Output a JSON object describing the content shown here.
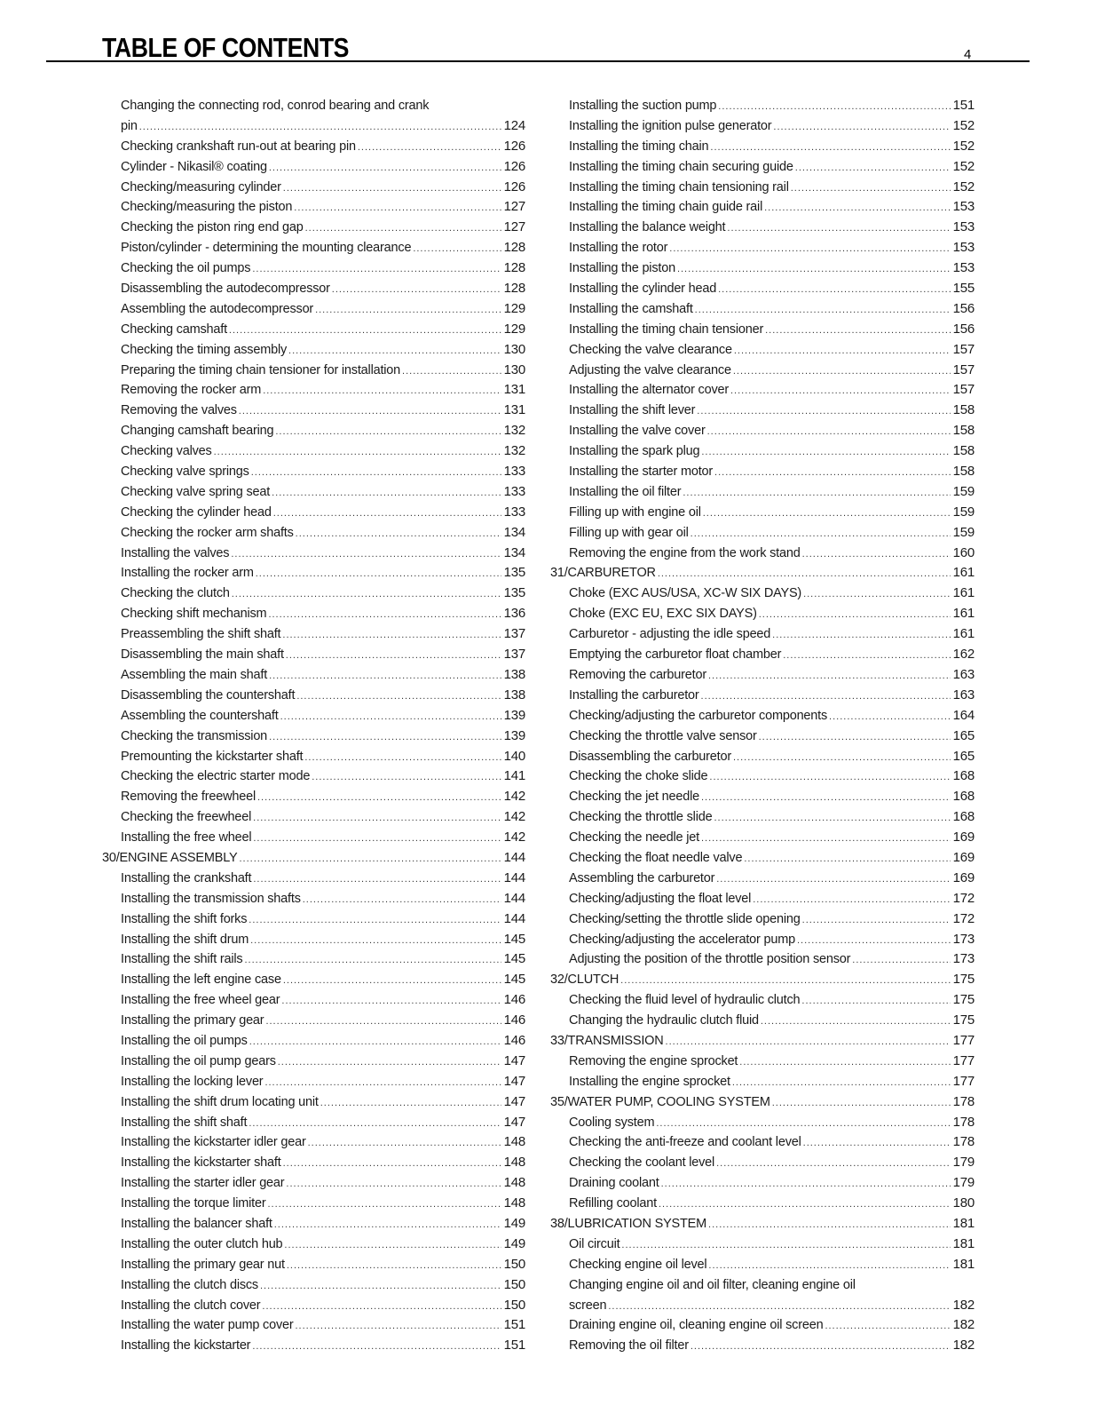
{
  "header": {
    "title": "TABLE OF CONTENTS",
    "page_number": "4"
  },
  "columns": [
    [
      {
        "lines": [
          "Changing the connecting rod, conrod bearing and crank",
          "pin"
        ],
        "page": "124",
        "level": 2
      },
      {
        "lines": [
          "Checking crankshaft run-out at bearing pin"
        ],
        "page": "126",
        "level": 2
      },
      {
        "lines": [
          "Cylinder - Nikasil® coating"
        ],
        "page": "126",
        "level": 2
      },
      {
        "lines": [
          "Checking/measuring cylinder"
        ],
        "page": "126",
        "level": 2
      },
      {
        "lines": [
          "Checking/measuring the piston"
        ],
        "page": "127",
        "level": 2
      },
      {
        "lines": [
          "Checking the piston ring end gap"
        ],
        "page": "127",
        "level": 2
      },
      {
        "lines": [
          "Piston/cylinder - determining the mounting clearance"
        ],
        "page": "128",
        "level": 2
      },
      {
        "lines": [
          "Checking the oil pumps"
        ],
        "page": "128",
        "level": 2
      },
      {
        "lines": [
          "Disassembling the autodecompressor"
        ],
        "page": "128",
        "level": 2
      },
      {
        "lines": [
          "Assembling the autodecompressor"
        ],
        "page": "129",
        "level": 2
      },
      {
        "lines": [
          "Checking camshaft"
        ],
        "page": "129",
        "level": 2
      },
      {
        "lines": [
          "Checking the timing assembly"
        ],
        "page": "130",
        "level": 2
      },
      {
        "lines": [
          "Preparing the timing chain tensioner for installation"
        ],
        "page": "130",
        "level": 2
      },
      {
        "lines": [
          "Removing the rocker arm"
        ],
        "page": "131",
        "level": 2
      },
      {
        "lines": [
          "Removing the valves"
        ],
        "page": "131",
        "level": 2
      },
      {
        "lines": [
          "Changing camshaft bearing"
        ],
        "page": "132",
        "level": 2
      },
      {
        "lines": [
          "Checking valves"
        ],
        "page": "132",
        "level": 2
      },
      {
        "lines": [
          "Checking valve springs"
        ],
        "page": "133",
        "level": 2
      },
      {
        "lines": [
          "Checking valve spring seat"
        ],
        "page": "133",
        "level": 2
      },
      {
        "lines": [
          "Checking the cylinder head"
        ],
        "page": "133",
        "level": 2
      },
      {
        "lines": [
          "Checking the rocker arm shafts"
        ],
        "page": "134",
        "level": 2
      },
      {
        "lines": [
          "Installing the valves"
        ],
        "page": "134",
        "level": 2
      },
      {
        "lines": [
          "Installing the rocker arm"
        ],
        "page": "135",
        "level": 2
      },
      {
        "lines": [
          "Checking the clutch"
        ],
        "page": "135",
        "level": 2
      },
      {
        "lines": [
          "Checking shift mechanism"
        ],
        "page": "136",
        "level": 2
      },
      {
        "lines": [
          "Preassembling the shift shaft"
        ],
        "page": "137",
        "level": 2
      },
      {
        "lines": [
          "Disassembling the main shaft"
        ],
        "page": "137",
        "level": 2
      },
      {
        "lines": [
          "Assembling the main shaft"
        ],
        "page": "138",
        "level": 2
      },
      {
        "lines": [
          "Disassembling the countershaft"
        ],
        "page": "138",
        "level": 2
      },
      {
        "lines": [
          "Assembling the countershaft"
        ],
        "page": "139",
        "level": 2
      },
      {
        "lines": [
          "Checking the transmission"
        ],
        "page": "139",
        "level": 2
      },
      {
        "lines": [
          "Premounting the kickstarter shaft"
        ],
        "page": "140",
        "level": 2
      },
      {
        "lines": [
          "Checking the electric starter mode"
        ],
        "page": "141",
        "level": 2
      },
      {
        "lines": [
          "Removing the freewheel"
        ],
        "page": "142",
        "level": 2
      },
      {
        "lines": [
          "Checking the freewheel"
        ],
        "page": "142",
        "level": 2
      },
      {
        "lines": [
          "Installing the free wheel"
        ],
        "page": "142",
        "level": 2
      },
      {
        "lines": [
          "30/ENGINE ASSEMBLY"
        ],
        "page": "144",
        "level": 1
      },
      {
        "lines": [
          "Installing the crankshaft"
        ],
        "page": "144",
        "level": 2
      },
      {
        "lines": [
          "Installing the transmission shafts"
        ],
        "page": "144",
        "level": 2
      },
      {
        "lines": [
          "Installing the shift forks"
        ],
        "page": "144",
        "level": 2
      },
      {
        "lines": [
          "Installing the shift drum"
        ],
        "page": "145",
        "level": 2
      },
      {
        "lines": [
          "Installing the shift rails"
        ],
        "page": "145",
        "level": 2
      },
      {
        "lines": [
          "Installing the left engine case"
        ],
        "page": "145",
        "level": 2
      },
      {
        "lines": [
          "Installing the free wheel gear"
        ],
        "page": "146",
        "level": 2
      },
      {
        "lines": [
          "Installing the primary gear"
        ],
        "page": "146",
        "level": 2
      },
      {
        "lines": [
          "Installing the oil pumps"
        ],
        "page": "146",
        "level": 2
      },
      {
        "lines": [
          "Installing the oil pump gears"
        ],
        "page": "147",
        "level": 2
      },
      {
        "lines": [
          "Installing the locking lever"
        ],
        "page": "147",
        "level": 2
      },
      {
        "lines": [
          "Installing the shift drum locating unit"
        ],
        "page": "147",
        "level": 2
      },
      {
        "lines": [
          "Installing the shift shaft"
        ],
        "page": "147",
        "level": 2
      },
      {
        "lines": [
          "Installing the kickstarter idler gear"
        ],
        "page": "148",
        "level": 2
      },
      {
        "lines": [
          "Installing the kickstarter shaft"
        ],
        "page": "148",
        "level": 2
      },
      {
        "lines": [
          "Installing the starter idler gear"
        ],
        "page": "148",
        "level": 2
      },
      {
        "lines": [
          "Installing the torque limiter"
        ],
        "page": "148",
        "level": 2
      },
      {
        "lines": [
          "Installing the balancer shaft"
        ],
        "page": "149",
        "level": 2
      },
      {
        "lines": [
          "Installing the outer clutch hub"
        ],
        "page": "149",
        "level": 2
      },
      {
        "lines": [
          "Installing the primary gear nut"
        ],
        "page": "150",
        "level": 2
      },
      {
        "lines": [
          "Installing the clutch discs"
        ],
        "page": "150",
        "level": 2
      },
      {
        "lines": [
          "Installing the clutch cover"
        ],
        "page": "150",
        "level": 2
      },
      {
        "lines": [
          "Installing the water pump cover"
        ],
        "page": "151",
        "level": 2
      },
      {
        "lines": [
          "Installing the kickstarter"
        ],
        "page": "151",
        "level": 2
      }
    ],
    [
      {
        "lines": [
          "Installing the suction pump"
        ],
        "page": "151",
        "level": 2
      },
      {
        "lines": [
          "Installing the ignition pulse generator"
        ],
        "page": "152",
        "level": 2
      },
      {
        "lines": [
          "Installing the timing chain"
        ],
        "page": "152",
        "level": 2
      },
      {
        "lines": [
          "Installing the timing chain securing guide"
        ],
        "page": "152",
        "level": 2
      },
      {
        "lines": [
          "Installing the timing chain tensioning rail"
        ],
        "page": "152",
        "level": 2
      },
      {
        "lines": [
          "Installing the timing chain guide rail"
        ],
        "page": "153",
        "level": 2
      },
      {
        "lines": [
          "Installing the balance weight"
        ],
        "page": "153",
        "level": 2
      },
      {
        "lines": [
          "Installing the rotor"
        ],
        "page": "153",
        "level": 2
      },
      {
        "lines": [
          "Installing the piston"
        ],
        "page": "153",
        "level": 2
      },
      {
        "lines": [
          "Installing the cylinder head"
        ],
        "page": "155",
        "level": 2
      },
      {
        "lines": [
          "Installing the camshaft"
        ],
        "page": "156",
        "level": 2
      },
      {
        "lines": [
          "Installing the timing chain tensioner"
        ],
        "page": "156",
        "level": 2
      },
      {
        "lines": [
          "Checking the valve clearance"
        ],
        "page": "157",
        "level": 2
      },
      {
        "lines": [
          "Adjusting the valve clearance"
        ],
        "page": "157",
        "level": 2
      },
      {
        "lines": [
          "Installing the alternator cover"
        ],
        "page": "157",
        "level": 2
      },
      {
        "lines": [
          "Installing the shift lever"
        ],
        "page": "158",
        "level": 2
      },
      {
        "lines": [
          "Installing the valve cover"
        ],
        "page": "158",
        "level": 2
      },
      {
        "lines": [
          "Installing the spark plug"
        ],
        "page": "158",
        "level": 2
      },
      {
        "lines": [
          "Installing the starter motor"
        ],
        "page": "158",
        "level": 2
      },
      {
        "lines": [
          "Installing the oil filter"
        ],
        "page": "159",
        "level": 2
      },
      {
        "lines": [
          "Filling up with engine oil"
        ],
        "page": "159",
        "level": 2
      },
      {
        "lines": [
          "Filling up with gear oil"
        ],
        "page": "159",
        "level": 2
      },
      {
        "lines": [
          "Removing the engine from the work stand"
        ],
        "page": "160",
        "level": 2
      },
      {
        "lines": [
          "31/CARBURETOR"
        ],
        "page": "161",
        "level": 1
      },
      {
        "lines": [
          "Choke (EXC AUS/USA, XC-W SIX DAYS)"
        ],
        "page": "161",
        "level": 2
      },
      {
        "lines": [
          "Choke (EXC EU, EXC SIX DAYS)"
        ],
        "page": "161",
        "level": 2
      },
      {
        "lines": [
          "Carburetor - adjusting the idle speed"
        ],
        "page": "161",
        "level": 2
      },
      {
        "lines": [
          "Emptying the carburetor float chamber"
        ],
        "page": "162",
        "level": 2
      },
      {
        "lines": [
          "Removing the carburetor"
        ],
        "page": "163",
        "level": 2
      },
      {
        "lines": [
          "Installing the carburetor"
        ],
        "page": "163",
        "level": 2
      },
      {
        "lines": [
          "Checking/adjusting the carburetor components"
        ],
        "page": "164",
        "level": 2
      },
      {
        "lines": [
          "Checking the throttle valve sensor"
        ],
        "page": "165",
        "level": 2
      },
      {
        "lines": [
          "Disassembling the carburetor"
        ],
        "page": "165",
        "level": 2
      },
      {
        "lines": [
          "Checking the choke slide"
        ],
        "page": "168",
        "level": 2
      },
      {
        "lines": [
          "Checking the jet needle"
        ],
        "page": "168",
        "level": 2
      },
      {
        "lines": [
          "Checking the throttle slide"
        ],
        "page": "168",
        "level": 2
      },
      {
        "lines": [
          "Checking the needle jet"
        ],
        "page": "169",
        "level": 2
      },
      {
        "lines": [
          "Checking the float needle valve"
        ],
        "page": "169",
        "level": 2
      },
      {
        "lines": [
          "Assembling the carburetor"
        ],
        "page": "169",
        "level": 2
      },
      {
        "lines": [
          "Checking/adjusting the float level"
        ],
        "page": "172",
        "level": 2
      },
      {
        "lines": [
          "Checking/setting the throttle slide opening"
        ],
        "page": "172",
        "level": 2
      },
      {
        "lines": [
          "Checking/adjusting the accelerator pump"
        ],
        "page": "173",
        "level": 2
      },
      {
        "lines": [
          "Adjusting the position of the throttle position sensor"
        ],
        "page": "173",
        "level": 2
      },
      {
        "lines": [
          "32/CLUTCH"
        ],
        "page": "175",
        "level": 1
      },
      {
        "lines": [
          "Checking the fluid level of hydraulic clutch"
        ],
        "page": "175",
        "level": 2
      },
      {
        "lines": [
          "Changing the hydraulic clutch fluid"
        ],
        "page": "175",
        "level": 2
      },
      {
        "lines": [
          "33/TRANSMISSION"
        ],
        "page": "177",
        "level": 1
      },
      {
        "lines": [
          "Removing the engine sprocket"
        ],
        "page": "177",
        "level": 2
      },
      {
        "lines": [
          "Installing the engine sprocket"
        ],
        "page": "177",
        "level": 2
      },
      {
        "lines": [
          "35/WATER PUMP, COOLING SYSTEM"
        ],
        "page": "178",
        "level": 1
      },
      {
        "lines": [
          "Cooling system"
        ],
        "page": "178",
        "level": 2
      },
      {
        "lines": [
          "Checking the anti-freeze and coolant level"
        ],
        "page": "178",
        "level": 2
      },
      {
        "lines": [
          "Checking the coolant level"
        ],
        "page": "179",
        "level": 2
      },
      {
        "lines": [
          "Draining coolant"
        ],
        "page": "179",
        "level": 2
      },
      {
        "lines": [
          "Refilling coolant"
        ],
        "page": "180",
        "level": 2
      },
      {
        "lines": [
          "38/LUBRICATION SYSTEM"
        ],
        "page": "181",
        "level": 1
      },
      {
        "lines": [
          "Oil circuit"
        ],
        "page": "181",
        "level": 2
      },
      {
        "lines": [
          "Checking engine oil level"
        ],
        "page": "181",
        "level": 2
      },
      {
        "lines": [
          "Changing engine oil and oil filter, cleaning engine oil",
          "screen"
        ],
        "page": "182",
        "level": 2
      },
      {
        "lines": [
          "Draining engine oil, cleaning engine oil screen"
        ],
        "page": "182",
        "level": 2
      },
      {
        "lines": [
          "Removing the oil filter"
        ],
        "page": "182",
        "level": 2
      }
    ]
  ]
}
